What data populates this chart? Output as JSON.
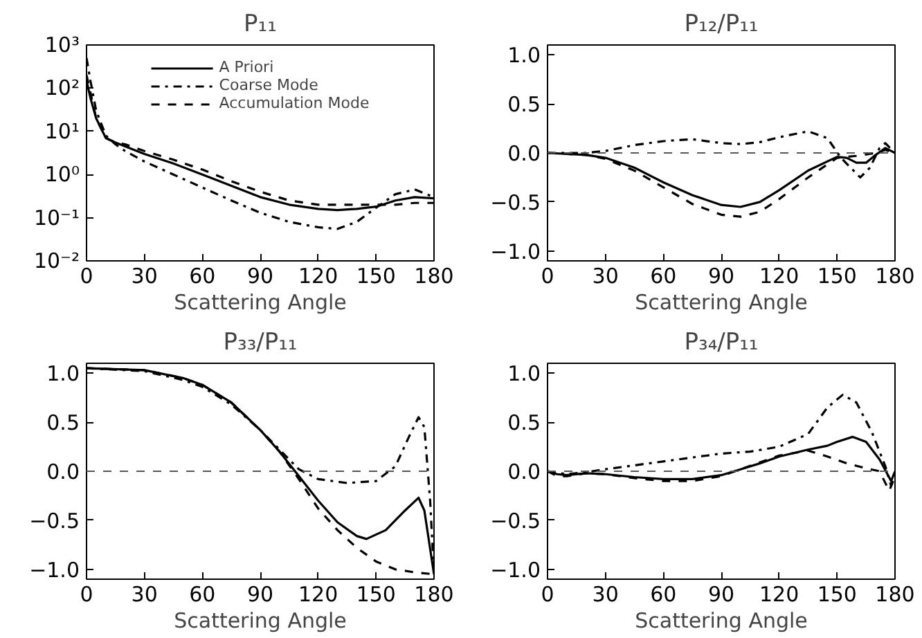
{
  "chart_data": [
    {
      "type": "line",
      "title": "P₁₁",
      "xlabel": "Scattering Angle",
      "log": "y",
      "xlim": [
        0,
        180
      ],
      "xticks": [
        0,
        30,
        60,
        90,
        120,
        150,
        180
      ],
      "ylim": [
        0.01,
        1000
      ],
      "yticks": [
        {
          "value": 0.01,
          "label": "10⁻²"
        },
        {
          "value": 0.1,
          "label": "10⁻¹"
        },
        {
          "value": 1,
          "label": "10⁰"
        },
        {
          "value": 10,
          "label": "10¹"
        },
        {
          "value": 100,
          "label": "10²"
        },
        {
          "value": 1000,
          "label": "10³"
        }
      ],
      "legend": "top",
      "grid": false,
      "x": [
        0,
        2,
        5,
        10,
        15,
        20,
        30,
        45,
        60,
        75,
        90,
        105,
        120,
        130,
        140,
        150,
        160,
        170,
        180
      ],
      "series": [
        {
          "name": "A Priori",
          "color": "#000000",
          "line_style": "solid",
          "values": [
            150,
            60,
            20,
            7,
            5.5,
            4.5,
            3,
            1.8,
            1.0,
            0.55,
            0.3,
            0.2,
            0.16,
            0.15,
            0.16,
            0.18,
            0.25,
            0.3,
            0.28
          ]
        },
        {
          "name": "Coarse Mode",
          "color": "#000000",
          "line_style": "dashdot",
          "values": [
            500,
            150,
            30,
            8,
            5,
            3.5,
            2,
            1.0,
            0.5,
            0.25,
            0.13,
            0.08,
            0.06,
            0.055,
            0.08,
            0.17,
            0.35,
            0.45,
            0.3
          ]
        },
        {
          "name": "Accumulation Mode",
          "color": "#000000",
          "line_style": "dashed",
          "values": [
            200,
            80,
            20,
            7,
            5.5,
            5,
            3.5,
            2.2,
            1.3,
            0.7,
            0.4,
            0.25,
            0.2,
            0.2,
            0.2,
            0.2,
            0.2,
            0.22,
            0.22
          ]
        }
      ]
    },
    {
      "type": "line",
      "title": "P₁₂/P₁₁",
      "xlabel": "Scattering Angle",
      "xlim": [
        0,
        180
      ],
      "xticks": [
        0,
        30,
        60,
        90,
        120,
        150,
        180
      ],
      "ylim": [
        -1.1,
        1.1
      ],
      "yticks": [
        {
          "value": -1,
          "label": "−1.0"
        },
        {
          "value": -0.5,
          "label": "−0.5"
        },
        {
          "value": 0,
          "label": "0.0"
        },
        {
          "value": 0.5,
          "label": "0.5"
        },
        {
          "value": 1,
          "label": "1.0"
        }
      ],
      "grid": false,
      "ref_lines": [
        {
          "axis": "y",
          "value": 0,
          "color": "#555555",
          "line_style": "dashed"
        }
      ],
      "series": [
        {
          "color": "#000000",
          "line_style": "solid",
          "x": [
            0,
            20,
            30,
            45,
            60,
            75,
            90,
            100,
            110,
            120,
            135,
            150,
            155,
            160,
            165,
            170,
            175,
            180
          ],
          "values": [
            0,
            -0.02,
            -0.05,
            -0.15,
            -0.3,
            -0.43,
            -0.53,
            -0.55,
            -0.5,
            -0.38,
            -0.18,
            -0.04,
            -0.05,
            -0.1,
            -0.1,
            -0.02,
            0.05,
            0
          ]
        },
        {
          "color": "#000000",
          "line_style": "dashdot",
          "x": [
            0,
            20,
            30,
            45,
            60,
            75,
            90,
            100,
            110,
            120,
            135,
            145,
            152,
            157,
            162,
            167,
            172,
            175,
            180
          ],
          "values": [
            0,
            0,
            0.02,
            0.08,
            0.12,
            0.14,
            0.1,
            0.09,
            0.11,
            0.16,
            0.22,
            0.15,
            -0.05,
            -0.15,
            -0.25,
            -0.15,
            0.05,
            0.1,
            0
          ]
        },
        {
          "color": "#000000",
          "line_style": "dashed",
          "x": [
            0,
            20,
            30,
            45,
            60,
            75,
            90,
            100,
            110,
            120,
            135,
            150,
            160,
            170,
            175,
            180
          ],
          "values": [
            0,
            -0.02,
            -0.06,
            -0.18,
            -0.35,
            -0.52,
            -0.63,
            -0.65,
            -0.6,
            -0.47,
            -0.25,
            -0.05,
            -0.03,
            0,
            0.03,
            0
          ]
        }
      ]
    },
    {
      "type": "line",
      "title": "P₃₃/P₁₁",
      "xlabel": "Scattering Angle",
      "xlim": [
        0,
        180
      ],
      "xticks": [
        0,
        30,
        60,
        90,
        120,
        150,
        180
      ],
      "ylim": [
        -1.1,
        1.1
      ],
      "yticks": [
        {
          "value": -1,
          "label": "−1.0"
        },
        {
          "value": -0.5,
          "label": "−0.5"
        },
        {
          "value": 0,
          "label": "0.0"
        },
        {
          "value": 0.5,
          "label": "0.5"
        },
        {
          "value": 1,
          "label": "1.0"
        }
      ],
      "grid": false,
      "ref_lines": [
        {
          "axis": "y",
          "value": 0,
          "color": "#555555",
          "line_style": "dashed"
        }
      ],
      "series": [
        {
          "color": "#000000",
          "line_style": "solid",
          "x": [
            0,
            30,
            50,
            60,
            75,
            90,
            100,
            110,
            120,
            130,
            140,
            145,
            155,
            165,
            172,
            175,
            180
          ],
          "values": [
            1.05,
            1.03,
            0.95,
            0.88,
            0.7,
            0.42,
            0.2,
            -0.05,
            -0.3,
            -0.52,
            -0.66,
            -0.69,
            -0.6,
            -0.4,
            -0.27,
            -0.4,
            -1.05
          ]
        },
        {
          "color": "#000000",
          "line_style": "dashdot",
          "x": [
            0,
            30,
            50,
            60,
            75,
            90,
            100,
            110,
            120,
            135,
            150,
            160,
            167,
            172,
            175,
            178,
            180
          ],
          "values": [
            1.05,
            1.02,
            0.93,
            0.86,
            0.68,
            0.42,
            0.22,
            0.02,
            -0.08,
            -0.12,
            -0.1,
            0.05,
            0.35,
            0.55,
            0.45,
            -0.3,
            -1.05
          ]
        },
        {
          "color": "#000000",
          "line_style": "dashed",
          "x": [
            0,
            30,
            50,
            60,
            75,
            90,
            100,
            110,
            120,
            130,
            140,
            150,
            160,
            170,
            180
          ],
          "values": [
            1.05,
            1.03,
            0.95,
            0.88,
            0.7,
            0.42,
            0.2,
            -0.08,
            -0.38,
            -0.6,
            -0.78,
            -0.92,
            -1.0,
            -1.03,
            -1.05
          ]
        }
      ]
    },
    {
      "type": "line",
      "title": "P₃₄/P₁₁",
      "xlabel": "Scattering Angle",
      "xlim": [
        0,
        180
      ],
      "xticks": [
        0,
        30,
        60,
        90,
        120,
        150,
        180
      ],
      "ylim": [
        -1.1,
        1.1
      ],
      "yticks": [
        {
          "value": -1,
          "label": "−1.0"
        },
        {
          "value": -0.5,
          "label": "−0.5"
        },
        {
          "value": 0,
          "label": "0.0"
        },
        {
          "value": 0.5,
          "label": "0.5"
        },
        {
          "value": 1,
          "label": "1.0"
        }
      ],
      "grid": false,
      "ref_lines": [
        {
          "axis": "y",
          "value": 0,
          "color": "#555555",
          "line_style": "dashed"
        }
      ],
      "series": [
        {
          "color": "#000000",
          "line_style": "solid",
          "x": [
            0,
            5,
            10,
            20,
            30,
            45,
            60,
            75,
            90,
            100,
            110,
            120,
            135,
            145,
            150,
            158,
            165,
            172,
            178,
            180
          ],
          "values": [
            0,
            -0.03,
            -0.04,
            -0.02,
            -0.03,
            -0.06,
            -0.08,
            -0.08,
            -0.04,
            0.02,
            0.08,
            0.15,
            0.22,
            0.26,
            0.3,
            0.35,
            0.3,
            0.12,
            -0.1,
            0
          ]
        },
        {
          "color": "#000000",
          "line_style": "dashdot",
          "x": [
            0,
            10,
            20,
            30,
            45,
            60,
            75,
            90,
            105,
            120,
            135,
            145,
            153,
            160,
            168,
            175,
            178,
            180
          ],
          "values": [
            0,
            -0.03,
            -0.01,
            0.02,
            0.06,
            0.1,
            0.14,
            0.18,
            0.2,
            0.25,
            0.38,
            0.65,
            0.78,
            0.7,
            0.4,
            0.05,
            -0.15,
            -0.05
          ]
        },
        {
          "color": "#000000",
          "line_style": "dashed",
          "x": [
            0,
            5,
            10,
            20,
            30,
            45,
            60,
            75,
            90,
            100,
            110,
            120,
            135,
            145,
            155,
            165,
            172,
            177,
            180
          ],
          "values": [
            0,
            -0.05,
            -0.05,
            -0.02,
            -0.03,
            -0.07,
            -0.1,
            -0.1,
            -0.05,
            0.02,
            0.09,
            0.16,
            0.21,
            0.15,
            0.08,
            0.03,
            0,
            -0.2,
            -0.05
          ]
        }
      ]
    }
  ]
}
